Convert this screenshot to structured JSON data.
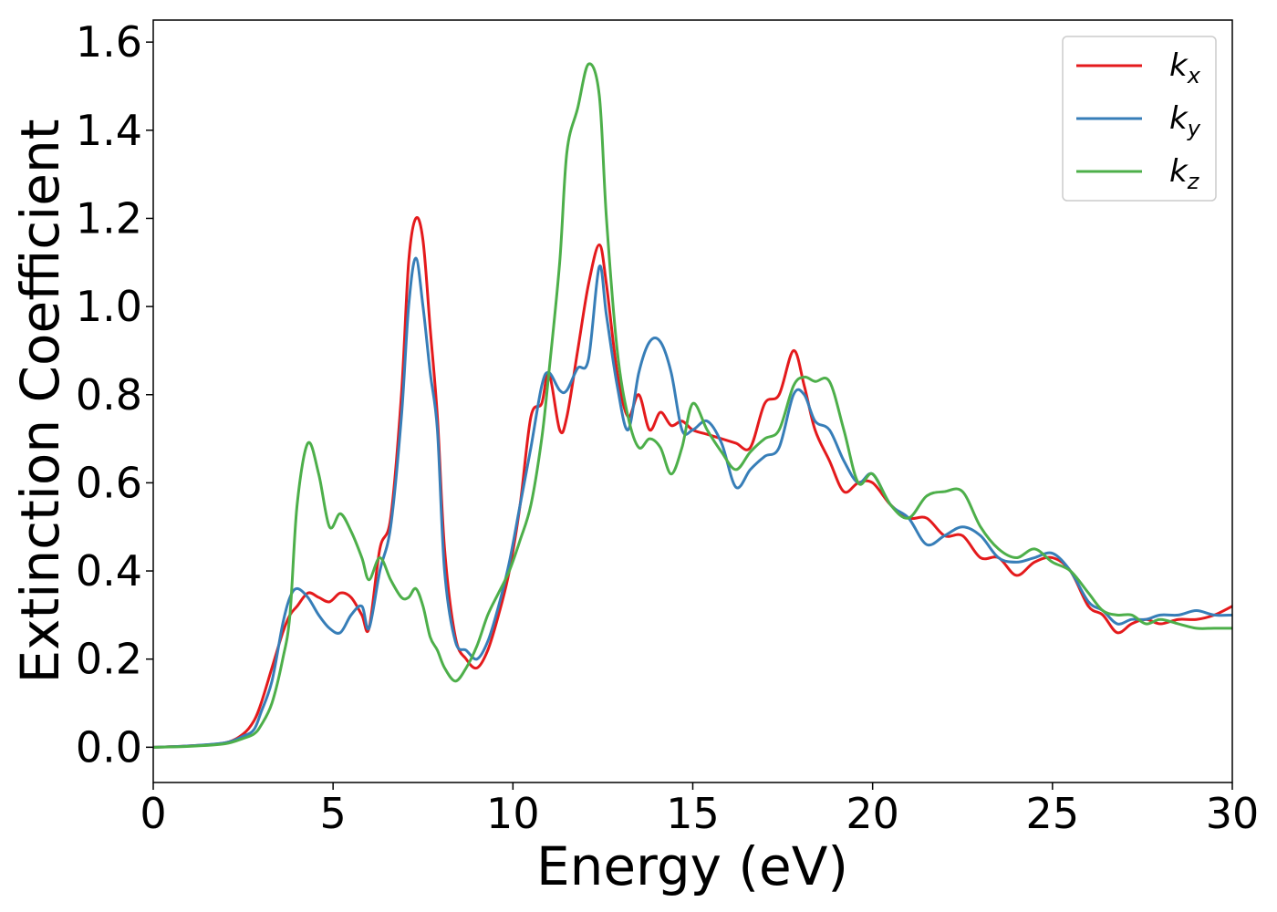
{
  "chart_data": {
    "type": "line",
    "xlabel": "Energy (eV)",
    "ylabel": "Extinction Coefficient",
    "xlim": [
      0,
      30
    ],
    "ylim": [
      -0.08,
      1.65
    ],
    "x_ticks": [
      0,
      5,
      10,
      15,
      20,
      25,
      30
    ],
    "x_tick_labels": [
      "0",
      "5",
      "10",
      "15",
      "20",
      "25",
      "30"
    ],
    "y_ticks": [
      0.0,
      0.2,
      0.4,
      0.6,
      0.8,
      1.0,
      1.2,
      1.4,
      1.6
    ],
    "y_tick_labels": [
      "0.0",
      "0.2",
      "0.4",
      "0.6",
      "0.8",
      "1.0",
      "1.2",
      "1.4",
      "1.6"
    ],
    "grid": false,
    "legend_position": "top-right",
    "series": [
      {
        "name": "k_x",
        "label_main": "k",
        "label_sub": "x",
        "color": "#e41a1c",
        "x": [
          0,
          1,
          2,
          2.5,
          2.8,
          3.0,
          3.3,
          3.6,
          3.8,
          4.0,
          4.3,
          4.6,
          4.9,
          5.2,
          5.5,
          5.8,
          6.0,
          6.3,
          6.6,
          6.9,
          7.1,
          7.3,
          7.5,
          7.7,
          7.9,
          8.1,
          8.4,
          8.7,
          9.0,
          9.3,
          9.6,
          9.9,
          10.2,
          10.5,
          10.8,
          11.0,
          11.3,
          11.5,
          11.8,
          12.1,
          12.4,
          12.6,
          12.9,
          13.2,
          13.5,
          13.8,
          14.1,
          14.4,
          14.7,
          15.0,
          15.4,
          15.8,
          16.2,
          16.6,
          17.0,
          17.4,
          17.8,
          18.1,
          18.4,
          18.8,
          19.2,
          19.6,
          20.0,
          20.5,
          21.0,
          21.5,
          22.0,
          22.5,
          23.0,
          23.5,
          24.0,
          24.5,
          25.0,
          25.5,
          26.0,
          26.4,
          26.8,
          27.2,
          27.6,
          28.0,
          28.5,
          29.0,
          29.5,
          30.0
        ],
        "values": [
          0.0,
          0.003,
          0.01,
          0.03,
          0.06,
          0.1,
          0.18,
          0.26,
          0.3,
          0.32,
          0.35,
          0.34,
          0.33,
          0.35,
          0.34,
          0.3,
          0.27,
          0.45,
          0.52,
          0.8,
          1.1,
          1.2,
          1.15,
          0.95,
          0.75,
          0.45,
          0.25,
          0.2,
          0.18,
          0.22,
          0.3,
          0.4,
          0.55,
          0.75,
          0.78,
          0.85,
          0.72,
          0.75,
          0.9,
          1.05,
          1.14,
          1.05,
          0.85,
          0.75,
          0.8,
          0.72,
          0.76,
          0.73,
          0.74,
          0.72,
          0.71,
          0.7,
          0.69,
          0.68,
          0.78,
          0.8,
          0.9,
          0.82,
          0.72,
          0.65,
          0.58,
          0.6,
          0.6,
          0.55,
          0.52,
          0.52,
          0.48,
          0.48,
          0.43,
          0.43,
          0.39,
          0.42,
          0.43,
          0.4,
          0.32,
          0.3,
          0.26,
          0.28,
          0.29,
          0.28,
          0.29,
          0.29,
          0.3,
          0.32
        ]
      },
      {
        "name": "k_y",
        "label_main": "k",
        "label_sub": "y",
        "color": "#377eb8",
        "x": [
          0,
          1,
          2,
          2.5,
          2.8,
          3.0,
          3.3,
          3.6,
          3.8,
          4.0,
          4.3,
          4.6,
          4.9,
          5.2,
          5.5,
          5.8,
          6.0,
          6.3,
          6.6,
          6.9,
          7.1,
          7.3,
          7.5,
          7.7,
          7.9,
          8.1,
          8.4,
          8.7,
          9.0,
          9.3,
          9.6,
          9.9,
          10.2,
          10.5,
          10.8,
          11.0,
          11.3,
          11.5,
          11.8,
          12.1,
          12.4,
          12.6,
          12.9,
          13.2,
          13.5,
          13.8,
          14.1,
          14.4,
          14.7,
          15.0,
          15.4,
          15.8,
          16.2,
          16.6,
          17.0,
          17.4,
          17.8,
          18.1,
          18.4,
          18.8,
          19.2,
          19.6,
          20.0,
          20.5,
          21.0,
          21.5,
          22.0,
          22.5,
          23.0,
          23.5,
          24.0,
          24.5,
          25.0,
          25.5,
          26.0,
          26.4,
          26.8,
          27.2,
          27.6,
          28.0,
          28.5,
          29.0,
          29.5,
          30.0
        ],
        "values": [
          0.0,
          0.003,
          0.01,
          0.025,
          0.04,
          0.08,
          0.15,
          0.28,
          0.34,
          0.36,
          0.34,
          0.3,
          0.27,
          0.26,
          0.3,
          0.32,
          0.27,
          0.4,
          0.5,
          0.75,
          1.0,
          1.11,
          1.0,
          0.85,
          0.72,
          0.4,
          0.24,
          0.22,
          0.2,
          0.24,
          0.32,
          0.42,
          0.55,
          0.68,
          0.82,
          0.85,
          0.81,
          0.81,
          0.86,
          0.88,
          1.09,
          0.98,
          0.82,
          0.72,
          0.85,
          0.92,
          0.92,
          0.85,
          0.72,
          0.72,
          0.74,
          0.69,
          0.59,
          0.63,
          0.66,
          0.68,
          0.8,
          0.8,
          0.74,
          0.72,
          0.65,
          0.6,
          0.62,
          0.55,
          0.52,
          0.46,
          0.48,
          0.5,
          0.48,
          0.43,
          0.42,
          0.43,
          0.44,
          0.4,
          0.33,
          0.31,
          0.28,
          0.29,
          0.29,
          0.3,
          0.3,
          0.31,
          0.3,
          0.3
        ]
      },
      {
        "name": "k_z",
        "label_main": "k",
        "label_sub": "z",
        "color": "#4daf4a",
        "x": [
          0,
          1,
          2,
          2.5,
          2.8,
          3.0,
          3.3,
          3.6,
          3.8,
          4.0,
          4.3,
          4.6,
          4.9,
          5.2,
          5.5,
          5.8,
          6.0,
          6.3,
          6.6,
          6.9,
          7.1,
          7.3,
          7.5,
          7.7,
          7.9,
          8.1,
          8.4,
          8.7,
          9.0,
          9.3,
          9.6,
          9.9,
          10.2,
          10.5,
          10.8,
          11.0,
          11.3,
          11.5,
          11.8,
          12.1,
          12.4,
          12.6,
          12.9,
          13.2,
          13.5,
          13.8,
          14.1,
          14.4,
          14.7,
          15.0,
          15.4,
          15.8,
          16.2,
          16.6,
          17.0,
          17.4,
          17.8,
          18.1,
          18.4,
          18.8,
          19.2,
          19.6,
          20.0,
          20.5,
          21.0,
          21.5,
          22.0,
          22.5,
          23.0,
          23.5,
          24.0,
          24.5,
          25.0,
          25.5,
          26.0,
          26.4,
          26.8,
          27.2,
          27.6,
          28.0,
          28.5,
          29.0,
          29.5,
          30.0
        ],
        "values": [
          0.0,
          0.002,
          0.008,
          0.02,
          0.03,
          0.05,
          0.1,
          0.2,
          0.3,
          0.55,
          0.69,
          0.62,
          0.5,
          0.53,
          0.49,
          0.43,
          0.38,
          0.43,
          0.38,
          0.34,
          0.34,
          0.36,
          0.32,
          0.25,
          0.22,
          0.18,
          0.15,
          0.18,
          0.23,
          0.3,
          0.35,
          0.4,
          0.47,
          0.55,
          0.7,
          0.85,
          1.1,
          1.35,
          1.45,
          1.55,
          1.48,
          1.2,
          0.9,
          0.75,
          0.68,
          0.7,
          0.68,
          0.62,
          0.68,
          0.78,
          0.72,
          0.67,
          0.63,
          0.67,
          0.7,
          0.72,
          0.82,
          0.84,
          0.83,
          0.83,
          0.72,
          0.6,
          0.62,
          0.55,
          0.52,
          0.57,
          0.58,
          0.58,
          0.5,
          0.45,
          0.43,
          0.45,
          0.42,
          0.4,
          0.35,
          0.31,
          0.3,
          0.3,
          0.28,
          0.29,
          0.28,
          0.27,
          0.27,
          0.27
        ]
      }
    ]
  }
}
